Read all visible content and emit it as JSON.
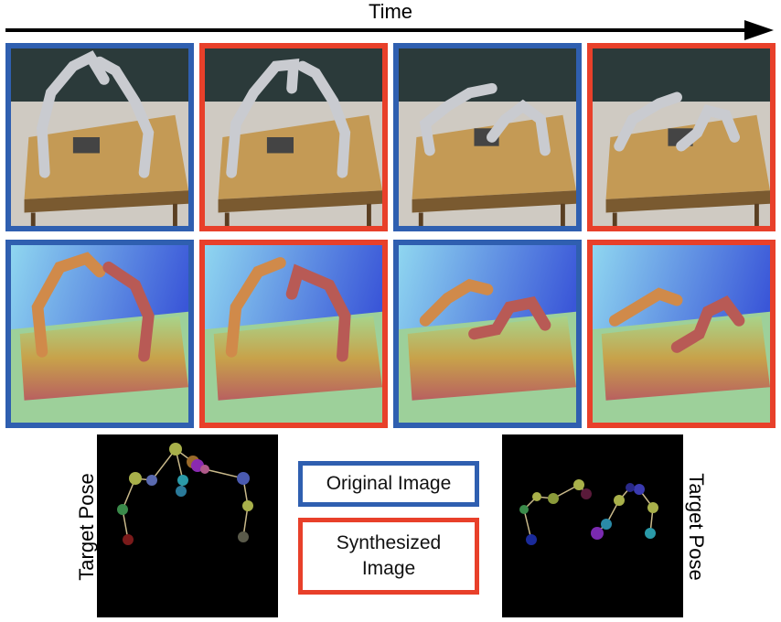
{
  "timeline": {
    "label": "Time"
  },
  "legend": {
    "original": {
      "label": "Original Image",
      "color": "#2f5fb0"
    },
    "synthesized": {
      "label": "Synthesized Image",
      "color": "#e8402a"
    }
  },
  "pose_labels": {
    "left": "Target Pose",
    "right": "Target Pose"
  },
  "rows": [
    {
      "kind": "rgb-render",
      "frames": [
        "original",
        "synthesized",
        "original",
        "synthesized"
      ]
    },
    {
      "kind": "depth-map",
      "frames": [
        "original",
        "synthesized",
        "original",
        "synthesized"
      ]
    }
  ]
}
